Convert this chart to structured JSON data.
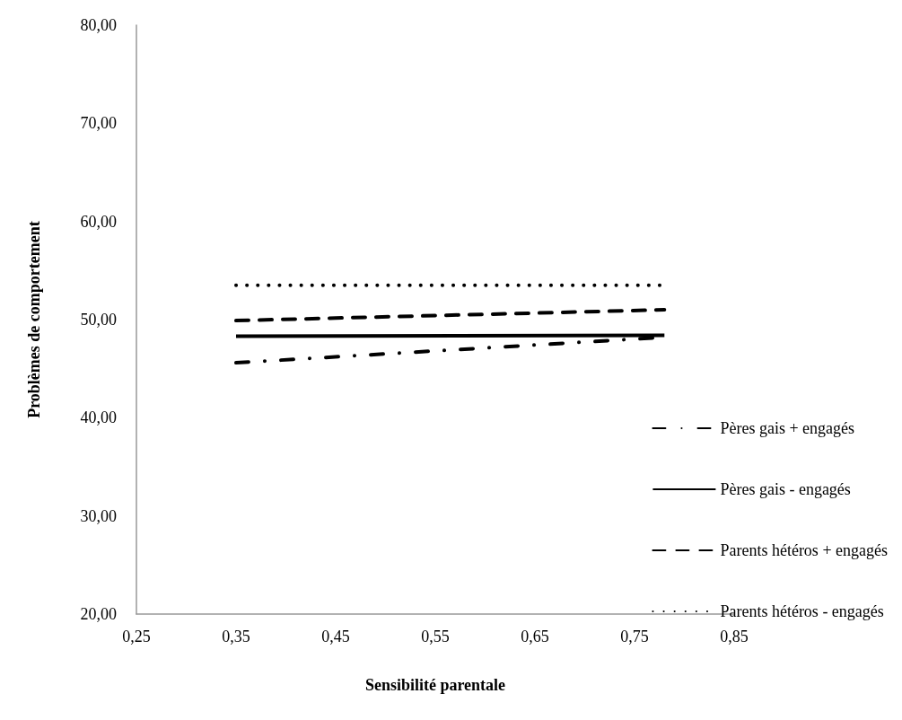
{
  "chart_data": {
    "type": "line",
    "xlabel": "Sensibilité parentale",
    "ylabel": "Problèmes de comportement",
    "x": [
      0.35,
      0.78
    ],
    "series": [
      {
        "name": "Pères gais + engagés",
        "color": "#000000",
        "line_style": "dashdot",
        "values": [
          45.6,
          48.2
        ]
      },
      {
        "name": "Pères gais - engagés",
        "color": "#000000",
        "line_style": "solid",
        "values": [
          48.3,
          48.4
        ]
      },
      {
        "name": "Parents hétéros + engagés",
        "color": "#000000",
        "line_style": "dashed",
        "values": [
          49.9,
          51.0
        ]
      },
      {
        "name": "Parents hétéros - engagés",
        "color": "#000000",
        "line_style": "dotted",
        "values": [
          53.5,
          53.5
        ]
      }
    ],
    "xlim": [
      0.25,
      0.85
    ],
    "xticks": [
      {
        "value": 0.25,
        "label": "0,25"
      },
      {
        "value": 0.35,
        "label": "0,35"
      },
      {
        "value": 0.45,
        "label": "0,45"
      },
      {
        "value": 0.55,
        "label": "0,55"
      },
      {
        "value": 0.65,
        "label": "0,65"
      },
      {
        "value": 0.75,
        "label": "0,75"
      },
      {
        "value": 0.85,
        "label": "0,85"
      }
    ],
    "ylim": [
      20,
      80
    ],
    "yticks": [
      {
        "value": 20,
        "label": "20,00"
      },
      {
        "value": 30,
        "label": "30,00"
      },
      {
        "value": 40,
        "label": "40,00"
      },
      {
        "value": 50,
        "label": "50,00"
      },
      {
        "value": 60,
        "label": "60,00"
      },
      {
        "value": 70,
        "label": "70,00"
      },
      {
        "value": 80,
        "label": "80,00"
      }
    ],
    "grid": false,
    "legend": "right",
    "marker": "none"
  }
}
